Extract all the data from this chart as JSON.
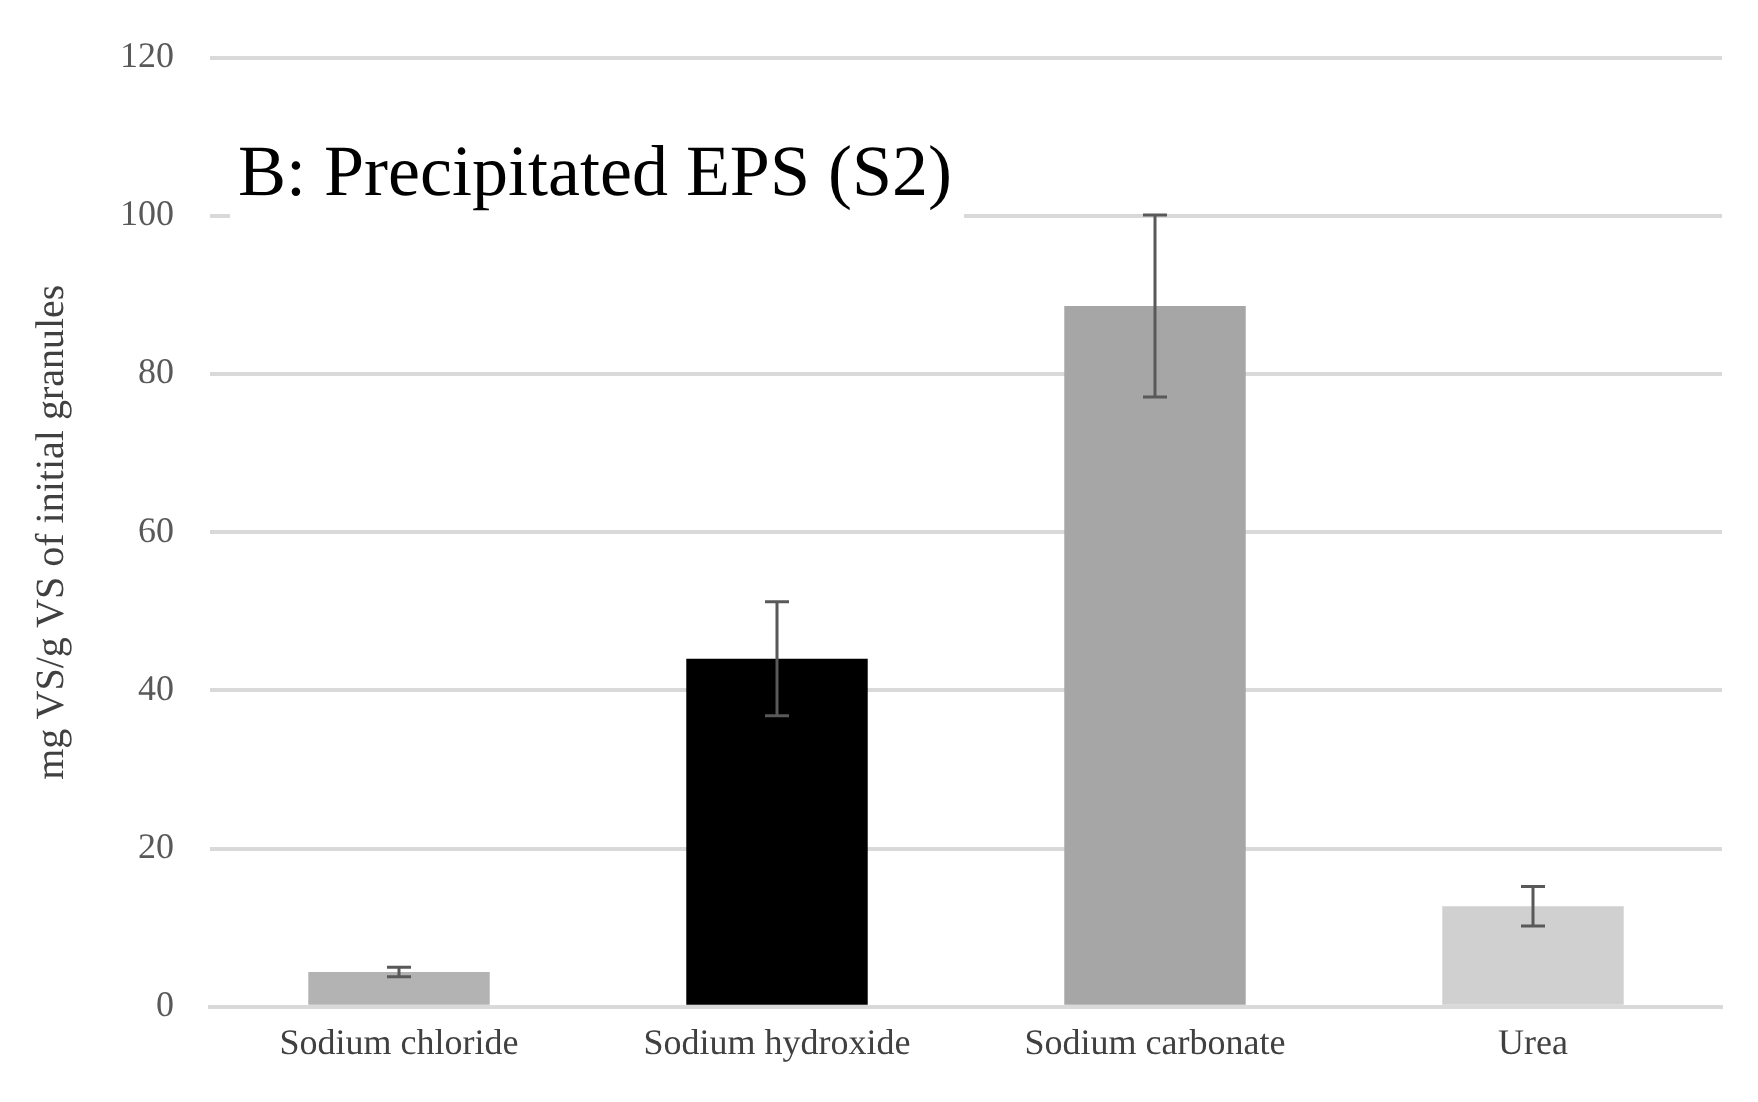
{
  "chart_data": {
    "type": "bar",
    "title": "B: Precipitated EPS (S2)",
    "ylabel": "mg VS/g VS of initial granules",
    "categories": [
      "Sodium chloride",
      "Sodium hydroxide",
      "Sodium carbonate",
      "Urea"
    ],
    "values": [
      4.4,
      44,
      88.6,
      12.7
    ],
    "colors": [
      "#b3b3b3",
      "#000000",
      "#a6a6a6",
      "#d0d0d0"
    ],
    "errors": [
      0.6,
      7.2,
      11.5,
      2.5
    ],
    "ylim": [
      0,
      120
    ],
    "yticks": [
      0,
      20,
      40,
      60,
      80,
      100,
      120
    ],
    "grid": "y",
    "legend": false
  }
}
